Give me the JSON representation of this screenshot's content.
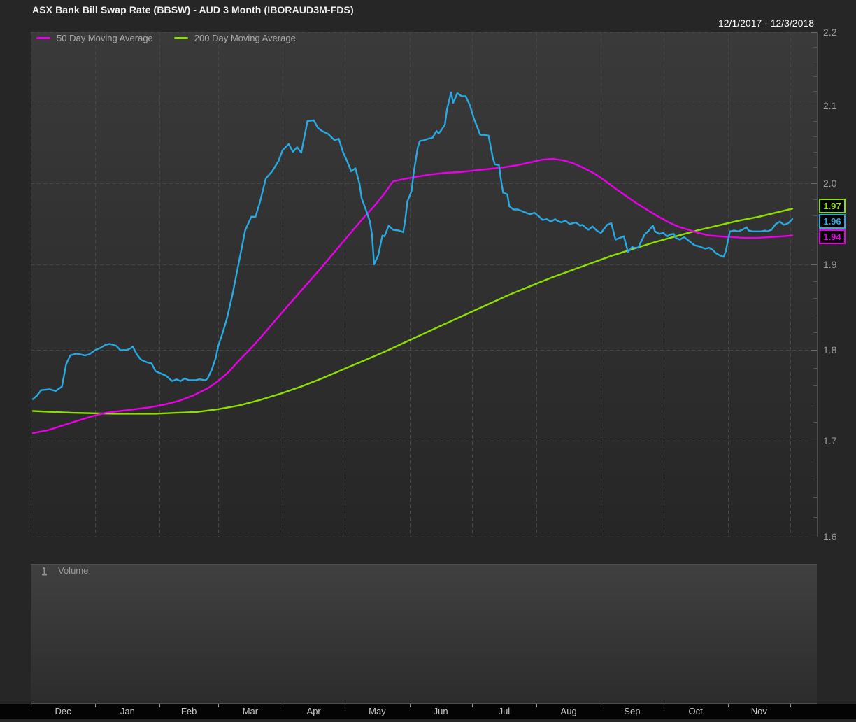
{
  "header": {
    "title": "ASX Bank Bill Swap Rate (BBSW) - AUD 3 Month (IBORAUD3M-FDS)",
    "date_range": "12/1/2017 - 12/3/2018"
  },
  "legend": [
    {
      "label": "50 Day Moving Average",
      "color": "#e800e8"
    },
    {
      "label": "200 Day Moving Average",
      "color": "#8cdf00"
    }
  ],
  "volume_panel": {
    "label": "Volume",
    "icon": "volume-tool-icon"
  },
  "last_values": [
    {
      "value": "1.97",
      "series": "200 Day Moving Average",
      "color": "#8cdf00"
    },
    {
      "value": "1.96",
      "series": "Price",
      "color": "#29a9e1"
    },
    {
      "value": "1.94",
      "series": "50 Day Moving Average",
      "color": "#e800e8"
    }
  ],
  "colors": {
    "price_line": "#29a9e1",
    "ma50_line": "#e800e8",
    "ma200_line": "#8cdf00",
    "grid": "#474747",
    "plot_bg_top": "#3a3a3a",
    "plot_bg_bottom": "#262626",
    "volume_bg_top": "#404040",
    "volume_bg_bottom": "#2c2c2c",
    "month_strip_bg": "#040404"
  },
  "chart_data": {
    "type": "line",
    "title": "ASX Bank Bill Swap Rate (BBSW) - AUD 3 Month (IBORAUD3M-FDS)",
    "period": "12/1/2017 - 12/3/2018",
    "x_axis": {
      "months": [
        "Dec",
        "Jan",
        "Feb",
        "Mar",
        "Apr",
        "May",
        "Jun",
        "Jul",
        "Aug",
        "Sep",
        "Oct",
        "Nov"
      ],
      "month_start_days": [
        0,
        31,
        62,
        90,
        121,
        151,
        182,
        212,
        243,
        274,
        304,
        335,
        365
      ],
      "domain_days": [
        0,
        378
      ]
    },
    "y_axis": {
      "side": "right",
      "scale": "log",
      "range": [
        1.6,
        2.2
      ],
      "tick_labels": [
        "2.2",
        "2.1",
        "2.0",
        "1.9",
        "1.8",
        "1.7",
        "1.6"
      ],
      "ticks": [
        2.2,
        2.1,
        2.0,
        1.9,
        1.8,
        1.7,
        1.6
      ],
      "minor_tick_step": 0.02
    },
    "legend_position": "top-left-inside",
    "grid": "dashed",
    "series": [
      {
        "name": "BBSW AUD 3 Month",
        "color": "#29a9e1",
        "width": 2.4,
        "points": [
          [
            1,
            1.745
          ],
          [
            3,
            1.749
          ],
          [
            5,
            1.755
          ],
          [
            9,
            1.756
          ],
          [
            12,
            1.754
          ],
          [
            15,
            1.759
          ],
          [
            17,
            1.784
          ],
          [
            19,
            1.794
          ],
          [
            22,
            1.796
          ],
          [
            26,
            1.794
          ],
          [
            28,
            1.795
          ],
          [
            31,
            1.8
          ],
          [
            33,
            1.802
          ],
          [
            36,
            1.806
          ],
          [
            38,
            1.807
          ],
          [
            41,
            1.805
          ],
          [
            43,
            1.8
          ],
          [
            46,
            1.8
          ],
          [
            48,
            1.802
          ],
          [
            49,
            1.804
          ],
          [
            51,
            1.795
          ],
          [
            53,
            1.789
          ],
          [
            56,
            1.786
          ],
          [
            58,
            1.785
          ],
          [
            60,
            1.776
          ],
          [
            63,
            1.773
          ],
          [
            65,
            1.771
          ],
          [
            68,
            1.765
          ],
          [
            70,
            1.767
          ],
          [
            72,
            1.765
          ],
          [
            74,
            1.768
          ],
          [
            76,
            1.766
          ],
          [
            79,
            1.766
          ],
          [
            81,
            1.767
          ],
          [
            84,
            1.766
          ],
          [
            85,
            1.768
          ],
          [
            87,
            1.778
          ],
          [
            89,
            1.792
          ],
          [
            90,
            1.804
          ],
          [
            92,
            1.818
          ],
          [
            94,
            1.834
          ],
          [
            95,
            1.844
          ],
          [
            97,
            1.865
          ],
          [
            99,
            1.89
          ],
          [
            101,
            1.915
          ],
          [
            103,
            1.941
          ],
          [
            106,
            1.958
          ],
          [
            108,
            1.958
          ],
          [
            110,
            1.975
          ],
          [
            113,
            2.006
          ],
          [
            116,
            2.015
          ],
          [
            119,
            2.028
          ],
          [
            121,
            2.042
          ],
          [
            124,
            2.05
          ],
          [
            126,
            2.04
          ],
          [
            128,
            2.046
          ],
          [
            130,
            2.039
          ],
          [
            133,
            2.08
          ],
          [
            136,
            2.081
          ],
          [
            138,
            2.071
          ],
          [
            140,
            2.067
          ],
          [
            143,
            2.063
          ],
          [
            146,
            2.055
          ],
          [
            148,
            2.057
          ],
          [
            150,
            2.04
          ],
          [
            152,
            2.028
          ],
          [
            154,
            2.015
          ],
          [
            156,
            2.019
          ],
          [
            158,
            1.999
          ],
          [
            159,
            1.981
          ],
          [
            161,
            1.967
          ],
          [
            163,
            1.952
          ],
          [
            164,
            1.935
          ],
          [
            165,
            1.9
          ],
          [
            167,
            1.911
          ],
          [
            169,
            1.935
          ],
          [
            170,
            1.934
          ],
          [
            172,
            1.947
          ],
          [
            174,
            1.942
          ],
          [
            177,
            1.941
          ],
          [
            179,
            1.939
          ],
          [
            180,
            1.955
          ],
          [
            181,
            1.977
          ],
          [
            183,
            1.99
          ],
          [
            184,
            2.013
          ],
          [
            186,
            2.046
          ],
          [
            187,
            2.054
          ],
          [
            189,
            2.055
          ],
          [
            191,
            2.057
          ],
          [
            193,
            2.058
          ],
          [
            195,
            2.067
          ],
          [
            196,
            2.064
          ],
          [
            197,
            2.067
          ],
          [
            199,
            2.075
          ],
          [
            200,
            2.095
          ],
          [
            202,
            2.118
          ],
          [
            203,
            2.104
          ],
          [
            205,
            2.117
          ],
          [
            207,
            2.113
          ],
          [
            209,
            2.113
          ],
          [
            211,
            2.101
          ],
          [
            213,
            2.083
          ],
          [
            215,
            2.069
          ],
          [
            216,
            2.062
          ],
          [
            218,
            2.062
          ],
          [
            220,
            2.061
          ],
          [
            222,
            2.033
          ],
          [
            223,
            2.024
          ],
          [
            225,
            2.023
          ],
          [
            226,
            2.004
          ],
          [
            227,
            1.988
          ],
          [
            229,
            1.986
          ],
          [
            230,
            1.971
          ],
          [
            232,
            1.967
          ],
          [
            234,
            1.967
          ],
          [
            236,
            1.965
          ],
          [
            238,
            1.963
          ],
          [
            240,
            1.961
          ],
          [
            242,
            1.963
          ],
          [
            244,
            1.959
          ],
          [
            246,
            1.954
          ],
          [
            248,
            1.955
          ],
          [
            250,
            1.952
          ],
          [
            252,
            1.955
          ],
          [
            253,
            1.953
          ],
          [
            255,
            1.951
          ],
          [
            257,
            1.953
          ],
          [
            259,
            1.949
          ],
          [
            262,
            1.951
          ],
          [
            264,
            1.947
          ],
          [
            265,
            1.948
          ],
          [
            268,
            1.942
          ],
          [
            270,
            1.946
          ],
          [
            272,
            1.941
          ],
          [
            274,
            1.938
          ],
          [
            277,
            1.948
          ],
          [
            279,
            1.95
          ],
          [
            281,
            1.93
          ],
          [
            283,
            1.932
          ],
          [
            285,
            1.934
          ],
          [
            287,
            1.915
          ],
          [
            289,
            1.921
          ],
          [
            290,
            1.92
          ],
          [
            292,
            1.92
          ],
          [
            293,
            1.926
          ],
          [
            295,
            1.936
          ],
          [
            297,
            1.941
          ],
          [
            299,
            1.947
          ],
          [
            300,
            1.94
          ],
          [
            302,
            1.937
          ],
          [
            304,
            1.938
          ],
          [
            306,
            1.934
          ],
          [
            307,
            1.936
          ],
          [
            309,
            1.937
          ],
          [
            310,
            1.932
          ],
          [
            312,
            1.93
          ],
          [
            314,
            1.933
          ],
          [
            316,
            1.929
          ],
          [
            317,
            1.927
          ],
          [
            319,
            1.923
          ],
          [
            321,
            1.922
          ],
          [
            323,
            1.92
          ],
          [
            324,
            1.919
          ],
          [
            326,
            1.92
          ],
          [
            328,
            1.917
          ],
          [
            329,
            1.914
          ],
          [
            331,
            1.911
          ],
          [
            333,
            1.909
          ],
          [
            334,
            1.916
          ],
          [
            336,
            1.94
          ],
          [
            338,
            1.941
          ],
          [
            340,
            1.94
          ],
          [
            342,
            1.942
          ],
          [
            344,
            1.945
          ],
          [
            345,
            1.941
          ],
          [
            347,
            1.94
          ],
          [
            349,
            1.94
          ],
          [
            351,
            1.94
          ],
          [
            353,
            1.941
          ],
          [
            354,
            1.94
          ],
          [
            356,
            1.942
          ],
          [
            358,
            1.949
          ],
          [
            360,
            1.952
          ],
          [
            362,
            1.948
          ],
          [
            364,
            1.95
          ],
          [
            366,
            1.955
          ]
        ]
      },
      {
        "name": "50 Day Moving Average",
        "color": "#e800e8",
        "width": 2.4,
        "points": [
          [
            1,
            1.708
          ],
          [
            8,
            1.711
          ],
          [
            15,
            1.716
          ],
          [
            22,
            1.721
          ],
          [
            29,
            1.726
          ],
          [
            36,
            1.73
          ],
          [
            43,
            1.732
          ],
          [
            50,
            1.734
          ],
          [
            57,
            1.736
          ],
          [
            64,
            1.739
          ],
          [
            71,
            1.743
          ],
          [
            78,
            1.749
          ],
          [
            85,
            1.757
          ],
          [
            90,
            1.765
          ],
          [
            95,
            1.775
          ],
          [
            100,
            1.788
          ],
          [
            105,
            1.8
          ],
          [
            110,
            1.813
          ],
          [
            115,
            1.827
          ],
          [
            120,
            1.841
          ],
          [
            125,
            1.855
          ],
          [
            130,
            1.869
          ],
          [
            135,
            1.883
          ],
          [
            140,
            1.897
          ],
          [
            145,
            1.912
          ],
          [
            150,
            1.927
          ],
          [
            155,
            1.942
          ],
          [
            160,
            1.957
          ],
          [
            165,
            1.971
          ],
          [
            170,
            1.987
          ],
          [
            174,
            2.002
          ],
          [
            179,
            2.005
          ],
          [
            185,
            2.008
          ],
          [
            192,
            2.011
          ],
          [
            199,
            2.013
          ],
          [
            206,
            2.014
          ],
          [
            213,
            2.016
          ],
          [
            220,
            2.018
          ],
          [
            227,
            2.02
          ],
          [
            234,
            2.023
          ],
          [
            241,
            2.027
          ],
          [
            246,
            2.03
          ],
          [
            251,
            2.031
          ],
          [
            256,
            2.029
          ],
          [
            261,
            2.025
          ],
          [
            266,
            2.019
          ],
          [
            271,
            2.012
          ],
          [
            276,
            2.003
          ],
          [
            281,
            1.993
          ],
          [
            286,
            1.984
          ],
          [
            291,
            1.975
          ],
          [
            296,
            1.967
          ],
          [
            301,
            1.959
          ],
          [
            306,
            1.952
          ],
          [
            311,
            1.946
          ],
          [
            316,
            1.942
          ],
          [
            321,
            1.938
          ],
          [
            326,
            1.935
          ],
          [
            331,
            1.934
          ],
          [
            337,
            1.933
          ],
          [
            343,
            1.932
          ],
          [
            349,
            1.932
          ],
          [
            355,
            1.933
          ],
          [
            361,
            1.934
          ],
          [
            366,
            1.935
          ]
        ]
      },
      {
        "name": "200 Day Moving Average",
        "color": "#8cdf00",
        "width": 2.4,
        "points": [
          [
            1,
            1.732
          ],
          [
            20,
            1.73
          ],
          [
            40,
            1.729
          ],
          [
            60,
            1.729
          ],
          [
            80,
            1.731
          ],
          [
            90,
            1.734
          ],
          [
            100,
            1.738
          ],
          [
            110,
            1.744
          ],
          [
            120,
            1.751
          ],
          [
            130,
            1.759
          ],
          [
            140,
            1.768
          ],
          [
            150,
            1.778
          ],
          [
            160,
            1.788
          ],
          [
            170,
            1.798
          ],
          [
            180,
            1.809
          ],
          [
            190,
            1.82
          ],
          [
            200,
            1.831
          ],
          [
            210,
            1.842
          ],
          [
            220,
            1.853
          ],
          [
            230,
            1.864
          ],
          [
            240,
            1.874
          ],
          [
            250,
            1.884
          ],
          [
            260,
            1.893
          ],
          [
            270,
            1.902
          ],
          [
            280,
            1.911
          ],
          [
            290,
            1.919
          ],
          [
            300,
            1.927
          ],
          [
            310,
            1.934
          ],
          [
            320,
            1.941
          ],
          [
            330,
            1.947
          ],
          [
            340,
            1.953
          ],
          [
            350,
            1.958
          ],
          [
            358,
            1.963
          ],
          [
            366,
            1.968
          ]
        ]
      }
    ]
  }
}
